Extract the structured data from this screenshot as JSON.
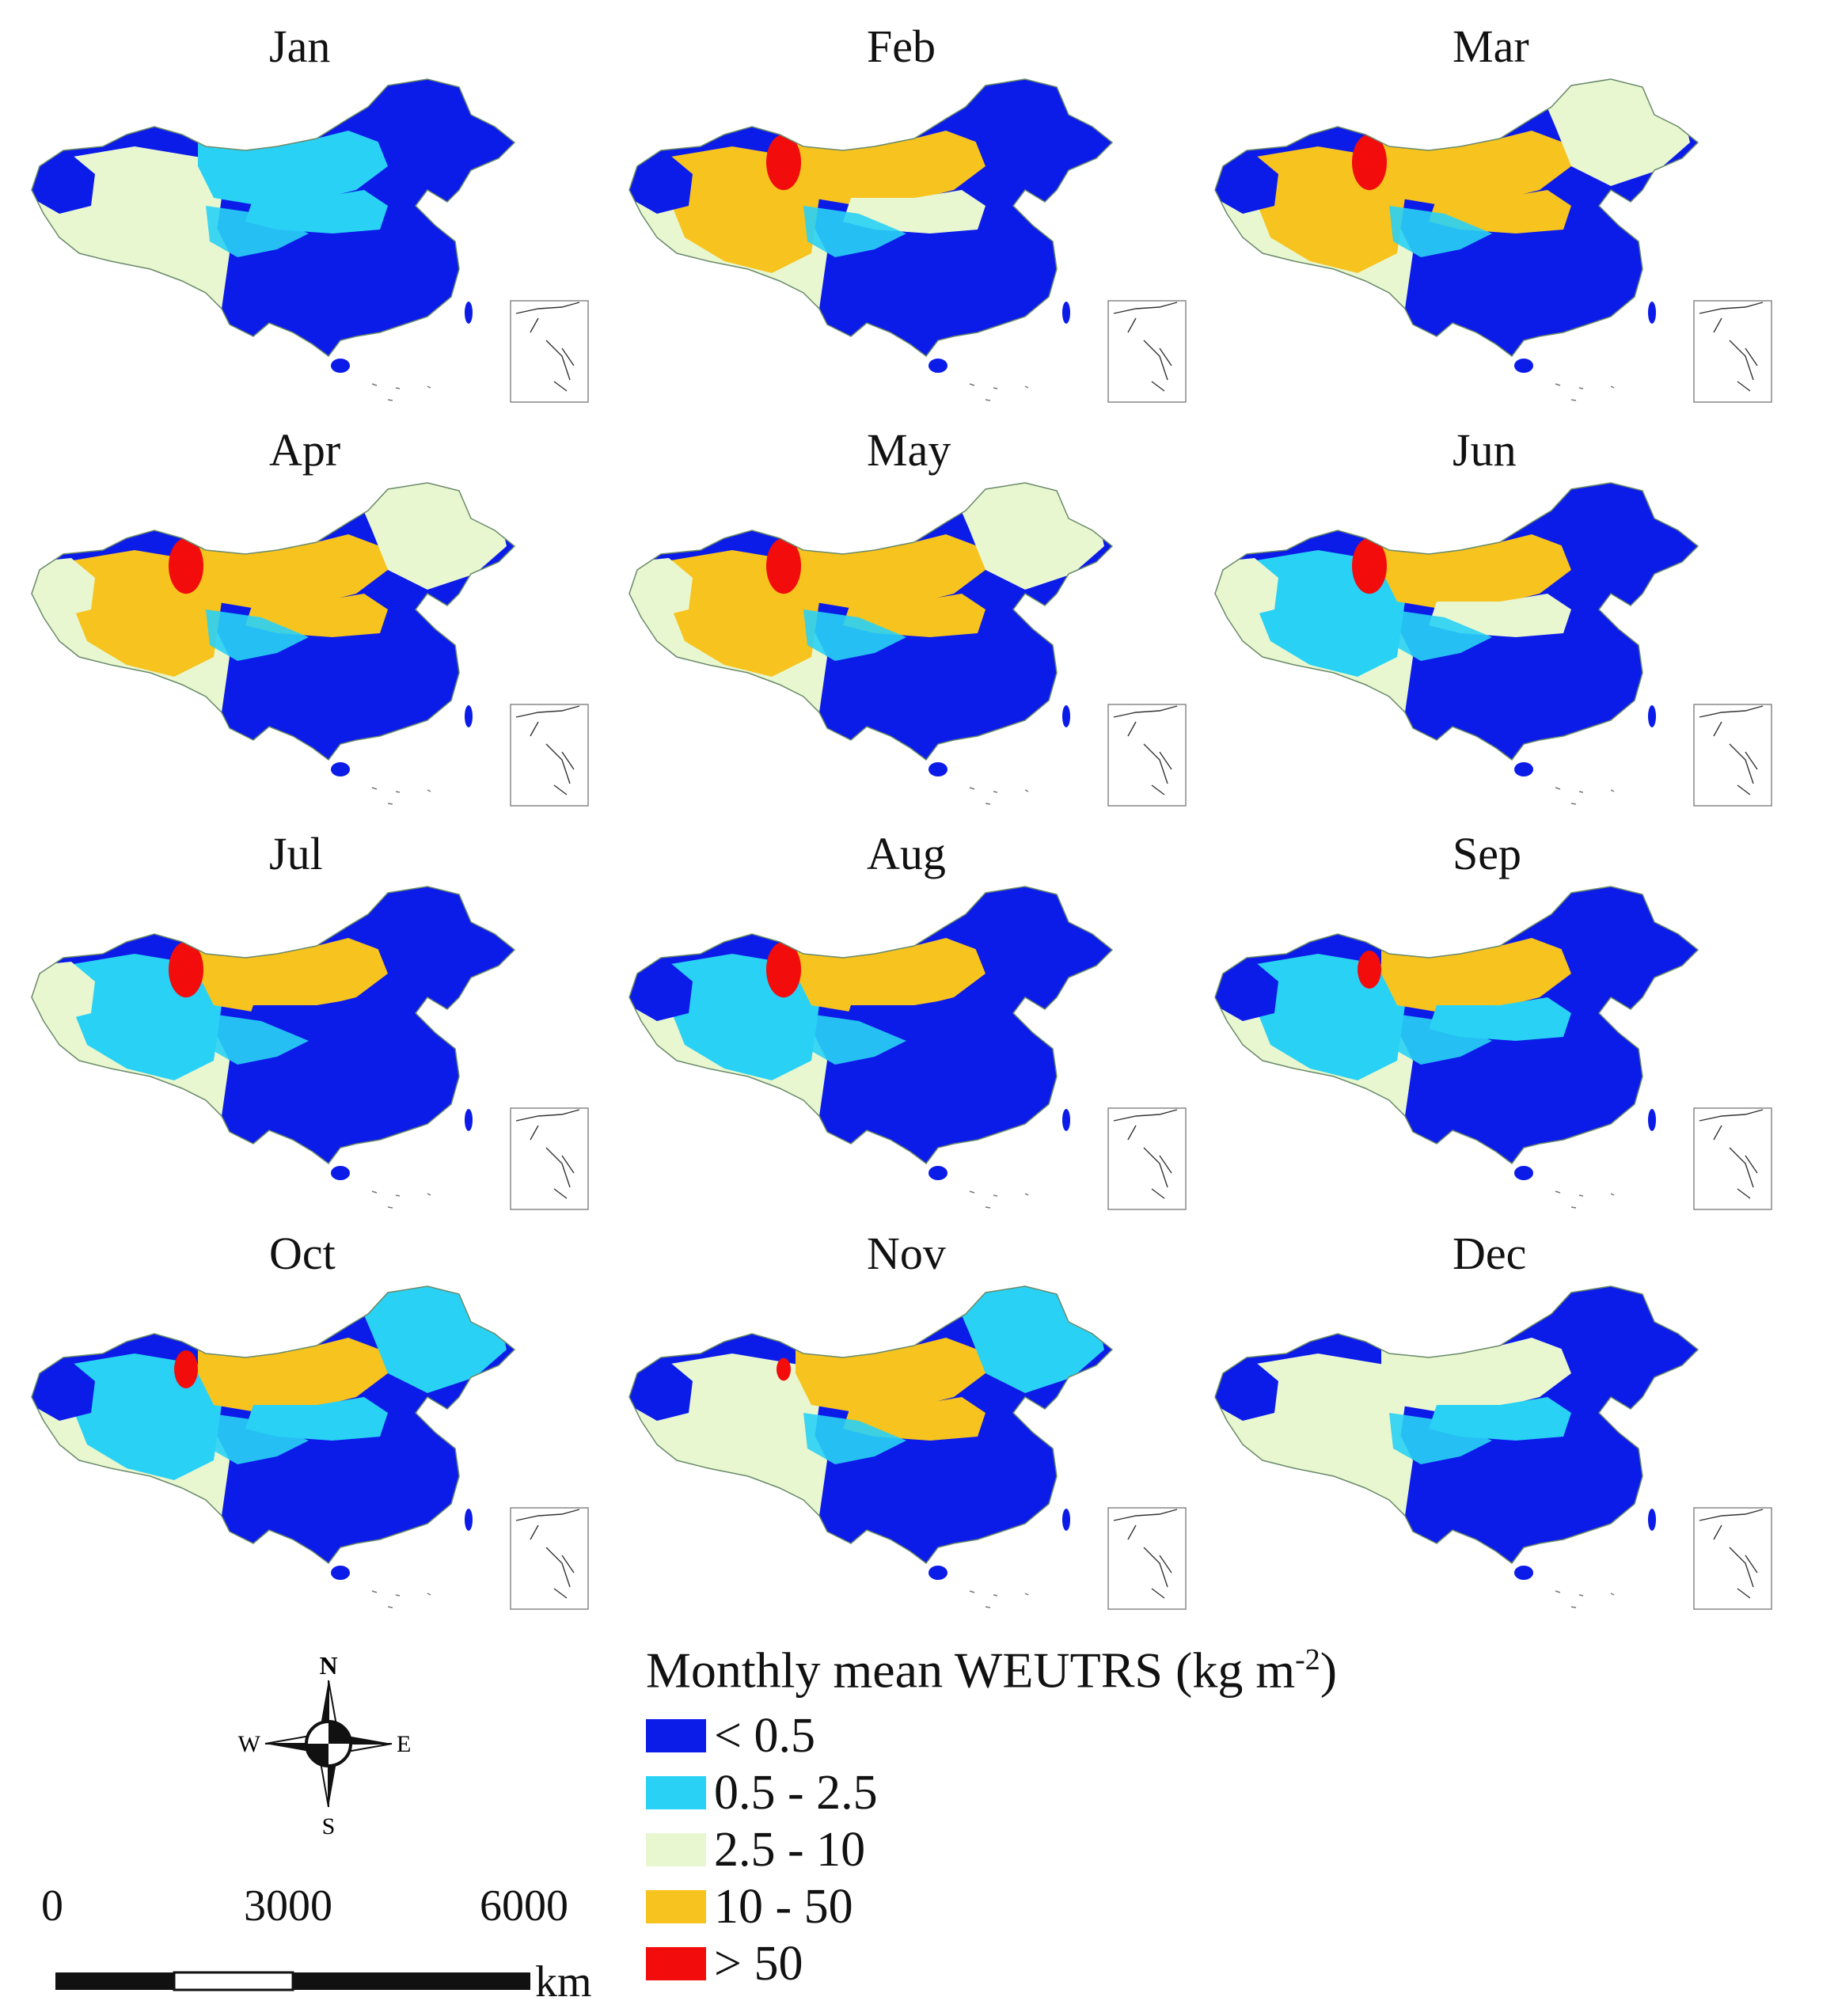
{
  "months": [
    "Jan",
    "Feb",
    "Mar",
    "Apr",
    "May",
    "Jun",
    "Jul",
    "Aug",
    "Sep",
    "Oct",
    "Nov",
    "Dec"
  ],
  "legend": {
    "title_main": "Monthly mean WEUTRS (kg m",
    "title_sup": "-2",
    "title_close": ")",
    "classes": [
      {
        "label": "< 0.5",
        "color": "#0c1ce8"
      },
      {
        "label": "0.5 - 2.5",
        "color": "#29d2f5"
      },
      {
        "label": "2.5 - 10",
        "color": "#e8f7cf"
      },
      {
        "label": "10 - 50",
        "color": "#f7c31e"
      },
      {
        "label": "> 50",
        "color": "#f20c0c"
      }
    ]
  },
  "compass": {
    "north": "N",
    "south": "S",
    "east": "E",
    "west": "W"
  },
  "scale": {
    "ticks": [
      "0",
      "3000",
      "6000"
    ],
    "unit": "km"
  },
  "map_levels": {
    "Jan": {
      "west_basin": "low",
      "northwest_desert": "mid",
      "inner_mongolia": "mid_low",
      "north_plain": "mid_low",
      "northeast": "low",
      "hotspot": "none"
    },
    "Feb": {
      "west_basin": "low",
      "northwest_desert": "high",
      "inner_mongolia": "high",
      "north_plain": "mid",
      "northeast": "low",
      "hotspot": "strong"
    },
    "Mar": {
      "west_basin": "low",
      "northwest_desert": "high",
      "inner_mongolia": "high",
      "north_plain": "high",
      "northeast": "mid",
      "hotspot": "strong"
    },
    "Apr": {
      "west_basin": "mid",
      "northwest_desert": "high",
      "inner_mongolia": "high",
      "north_plain": "high",
      "northeast": "mid",
      "hotspot": "strong"
    },
    "May": {
      "west_basin": "mid",
      "northwest_desert": "mid_high",
      "inner_mongolia": "high",
      "north_plain": "high",
      "northeast": "mid",
      "hotspot": "strong"
    },
    "Jun": {
      "west_basin": "mid",
      "northwest_desert": "mid_low",
      "inner_mongolia": "high",
      "north_plain": "mid",
      "northeast": "low",
      "hotspot": "strong"
    },
    "Jul": {
      "west_basin": "mid",
      "northwest_desert": "mid_low",
      "inner_mongolia": "high",
      "north_plain": "low",
      "northeast": "low",
      "hotspot": "strong"
    },
    "Aug": {
      "west_basin": "low",
      "northwest_desert": "mid_low",
      "inner_mongolia": "high",
      "north_plain": "low",
      "northeast": "low",
      "hotspot": "strong"
    },
    "Sep": {
      "west_basin": "low",
      "northwest_desert": "mid_low",
      "inner_mongolia": "high",
      "north_plain": "mid_low",
      "northeast": "low",
      "hotspot": "medium"
    },
    "Oct": {
      "west_basin": "low",
      "northwest_desert": "mid_low",
      "inner_mongolia": "high",
      "north_plain": "mid_low",
      "northeast": "mid_low",
      "hotspot": "medium"
    },
    "Nov": {
      "west_basin": "low",
      "northwest_desert": "mid",
      "inner_mongolia": "high",
      "north_plain": "high",
      "northeast": "mid_low",
      "hotspot": "weak"
    },
    "Dec": {
      "west_basin": "low",
      "northwest_desert": "mid",
      "inner_mongolia": "mid",
      "north_plain": "mid_low",
      "northeast": "low",
      "hotspot": "none"
    }
  }
}
